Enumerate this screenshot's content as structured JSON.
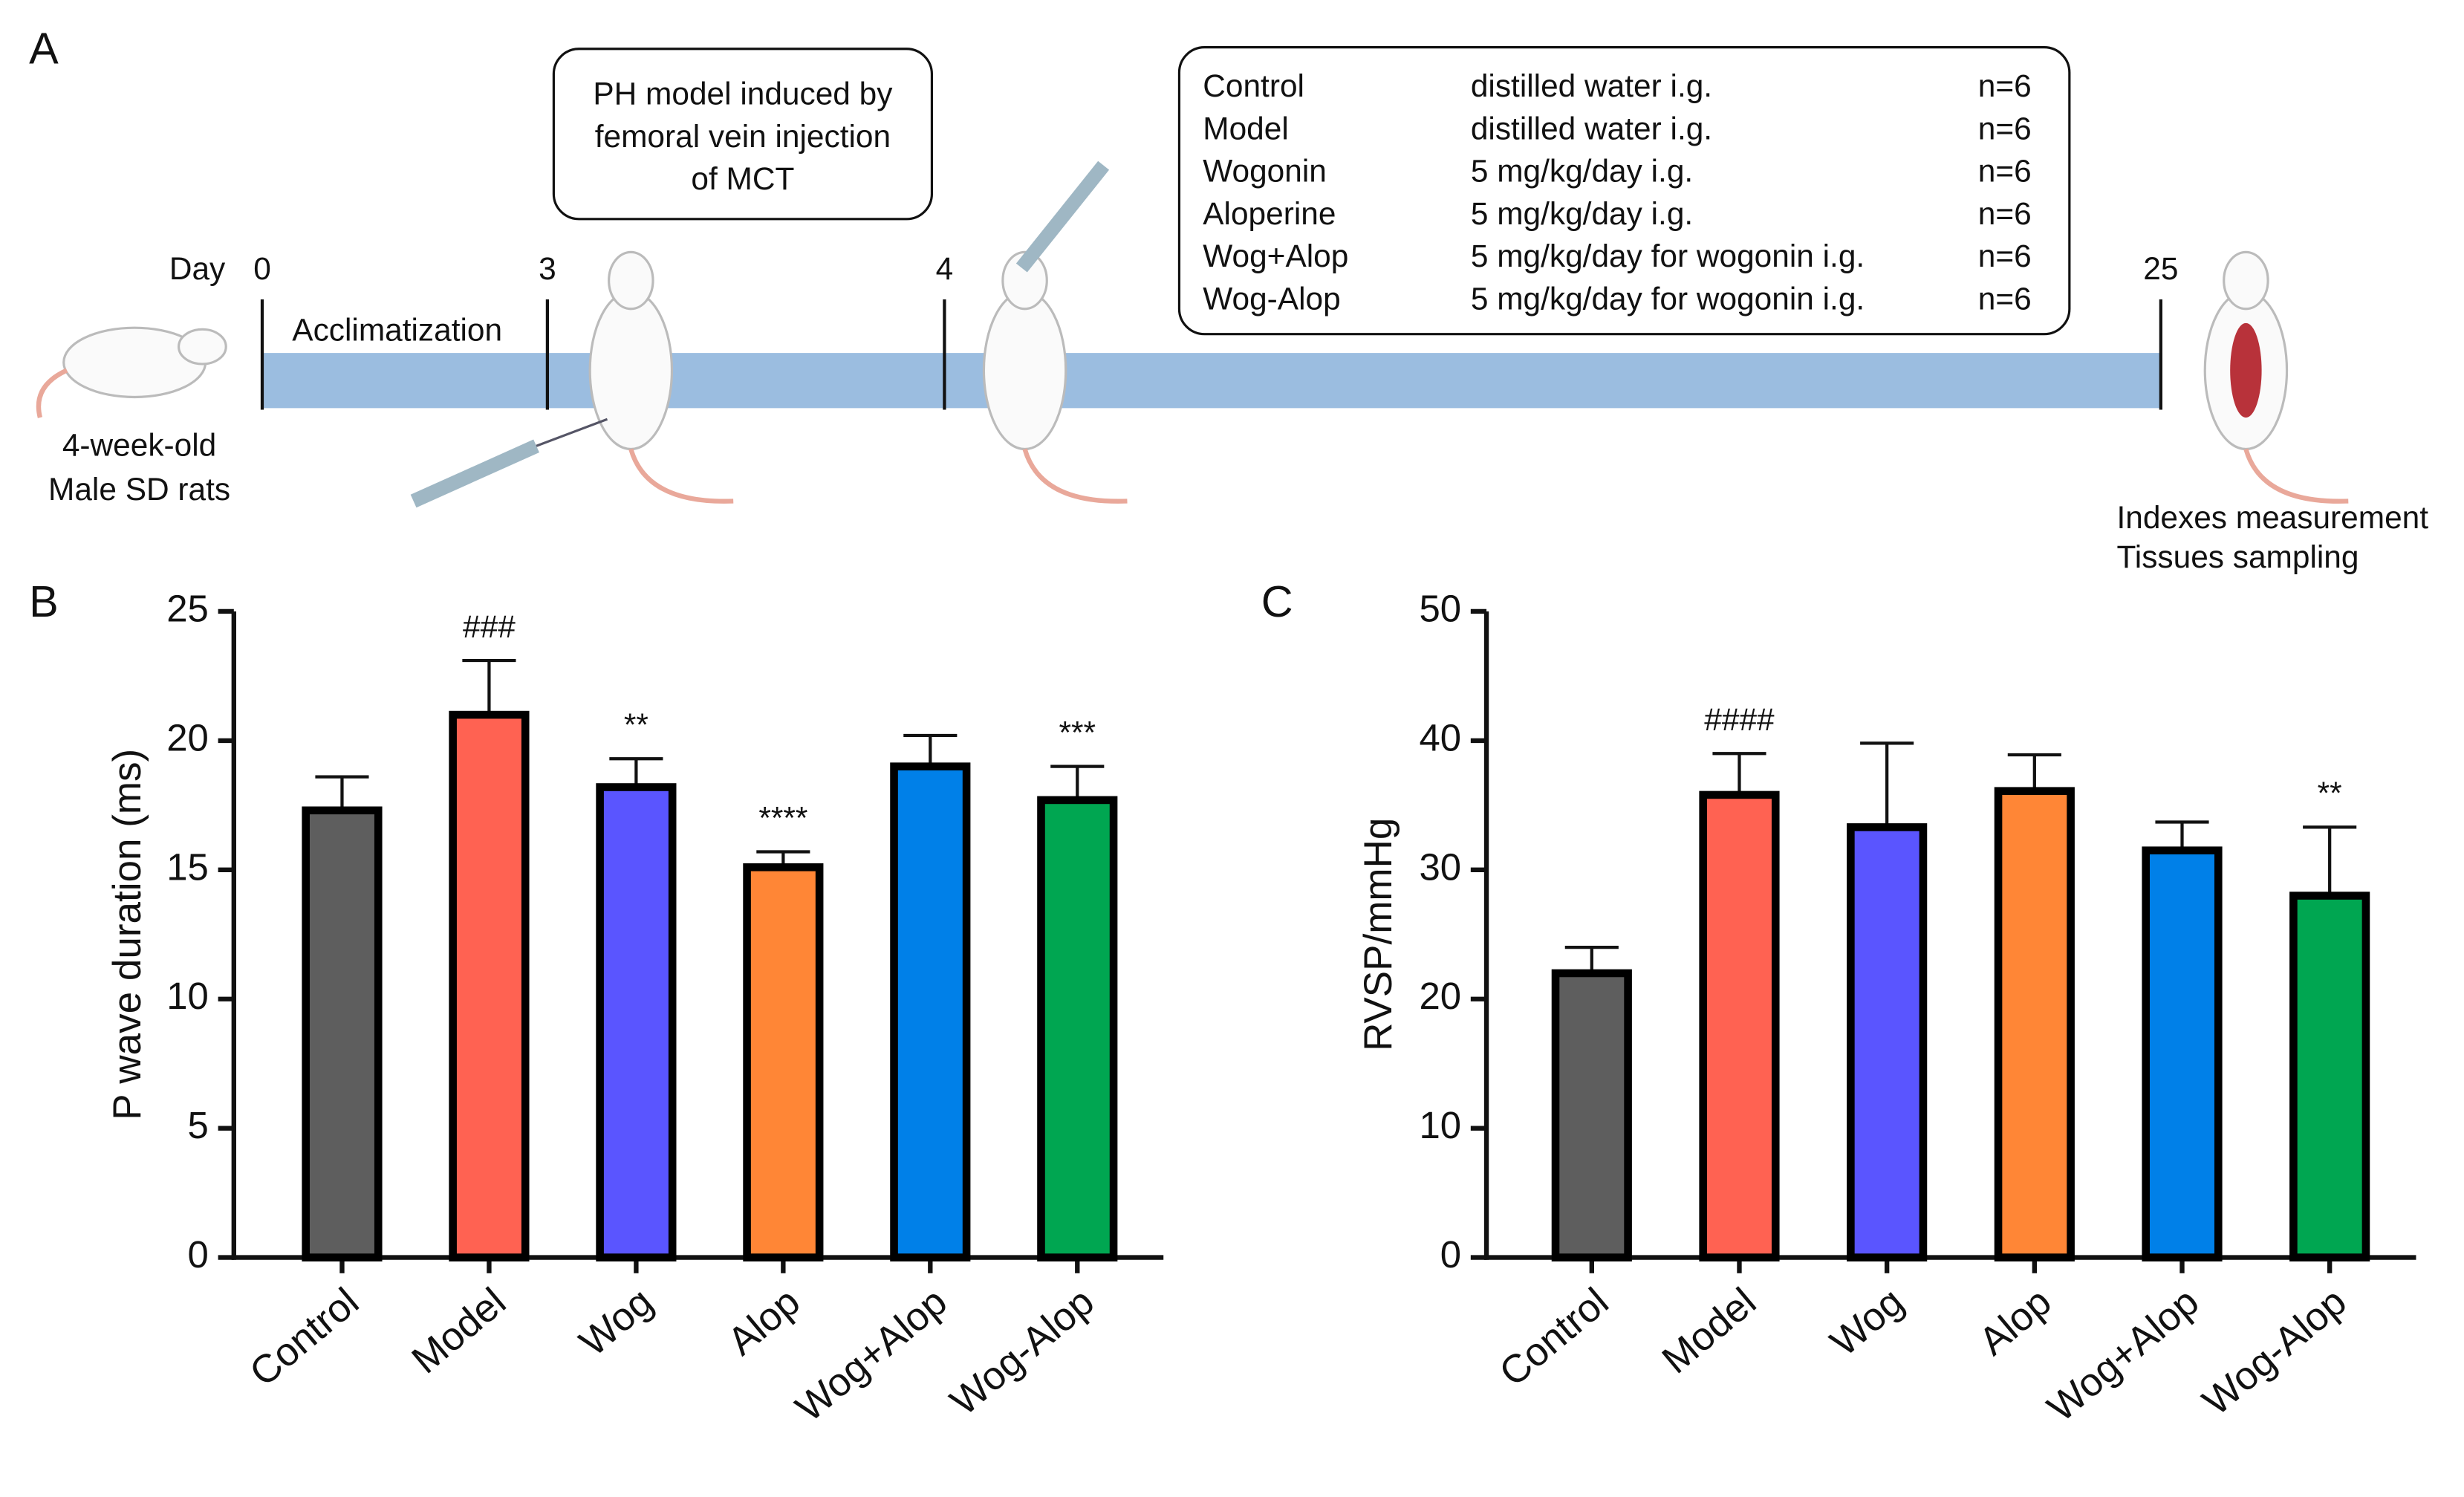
{
  "panel_labels": [
    "A",
    "B",
    "C"
  ],
  "timeline": {
    "day_label": "Day",
    "days": [
      "0",
      "3",
      "4",
      "25"
    ],
    "phase": "Acclimatization",
    "start": [
      "4-week-old",
      "Male SD rats"
    ],
    "model_box": [
      "PH model induced by",
      "femoral vein injection",
      "of MCT"
    ],
    "groups": [
      [
        "Control",
        "distilled water i.g.",
        "n=6"
      ],
      [
        "Model",
        "distilled water i.g.",
        "n=6"
      ],
      [
        "Wogonin",
        "5 mg/kg/day i.g.",
        "n=6"
      ],
      [
        "Aloperine",
        "5 mg/kg/day i.g.",
        "n=6"
      ],
      [
        "Wog+Alop",
        "5 mg/kg/day for wogonin i.g.",
        "n=6"
      ],
      [
        "Wog-Alop",
        "5 mg/kg/day for wogonin i.g.",
        "n=6"
      ]
    ],
    "end": [
      "Indexes measurement",
      "Tissues sampling"
    ]
  },
  "chart_data": [
    {
      "type": "bar",
      "y_label": "P wave duration (ms)",
      "categories": [
        "Control",
        "Model",
        "Wog",
        "Alop",
        "Wog+Alop",
        "Wog-Alop"
      ],
      "values": [
        17.3,
        21.0,
        18.2,
        15.1,
        19.0,
        17.7
      ],
      "errors": [
        1.3,
        2.1,
        1.1,
        0.6,
        1.2,
        1.3
      ],
      "annotations": [
        null,
        "###",
        "**",
        "****",
        null,
        "***"
      ],
      "colors": [
        "#5e5e5e",
        "#ff6252",
        "#5a55ff",
        "#ff8636",
        "#0080e8",
        "#00a651"
      ],
      "ylim": [
        0,
        25
      ],
      "yticks": [
        0,
        5,
        10,
        15,
        20,
        25
      ]
    },
    {
      "type": "bar",
      "y_label": "RVSP/mmHg",
      "categories": [
        "Control",
        "Model",
        "Wog",
        "Alop",
        "Wog+Alop",
        "Wog-Alop"
      ],
      "values": [
        22.0,
        35.8,
        33.3,
        36.1,
        31.5,
        28.0
      ],
      "errors": [
        2.0,
        3.2,
        6.5,
        2.8,
        2.2,
        5.3
      ],
      "annotations": [
        null,
        "####",
        null,
        null,
        null,
        "**"
      ],
      "colors": [
        "#5e5e5e",
        "#ff6252",
        "#5a55ff",
        "#ff8636",
        "#0080e8",
        "#00a651"
      ],
      "ylim": [
        0,
        50
      ],
      "yticks": [
        0,
        10,
        20,
        30,
        40,
        50
      ]
    }
  ]
}
